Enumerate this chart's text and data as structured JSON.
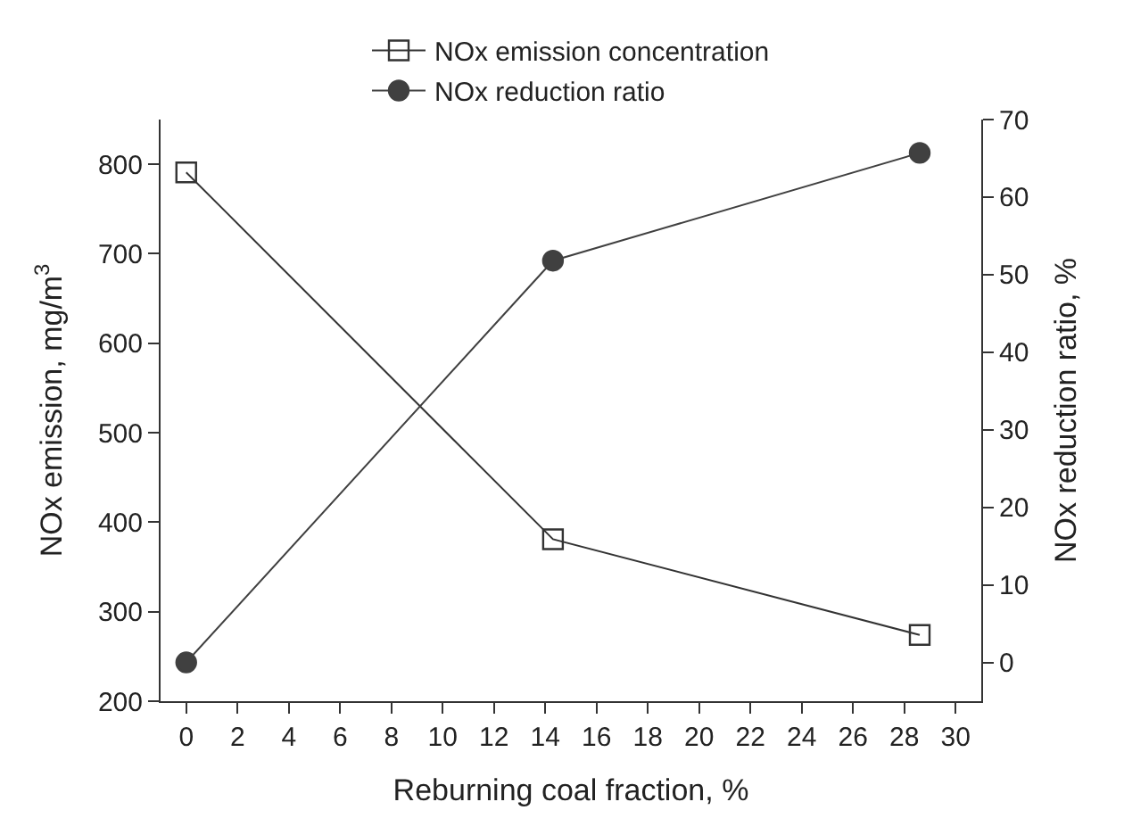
{
  "chart_data": {
    "type": "line",
    "xlabel": "Reburning coal fraction, %",
    "ylabel": "NOx emission, mg/m$^{3}$",
    "y2label": "NOx reduction ratio, %",
    "x": [
      0,
      14.3,
      28.6
    ],
    "series": [
      {
        "name": "NOx emission concentration",
        "color": "#333333",
        "values": [
          791,
          381,
          274
        ],
        "marker": "square"
      },
      {
        "name": "NOx reduction ratio",
        "color": "#404040",
        "values": [
          0,
          51.8,
          65.7
        ],
        "marker": "circle",
        "axis": "y2"
      }
    ],
    "xlim": [
      -1,
      31
    ],
    "xticks": [
      0,
      2,
      4,
      6,
      8,
      10,
      12,
      14,
      16,
      18,
      20,
      22,
      24,
      26,
      28,
      30
    ],
    "ylim": [
      200,
      850
    ],
    "yticks": [
      200,
      300,
      400,
      500,
      600,
      700,
      800
    ],
    "y2lim": [
      -5,
      70
    ],
    "y2ticks": [
      0,
      10,
      20,
      30,
      40,
      50,
      60,
      70
    ],
    "legend": "top",
    "line_style": "solid"
  }
}
